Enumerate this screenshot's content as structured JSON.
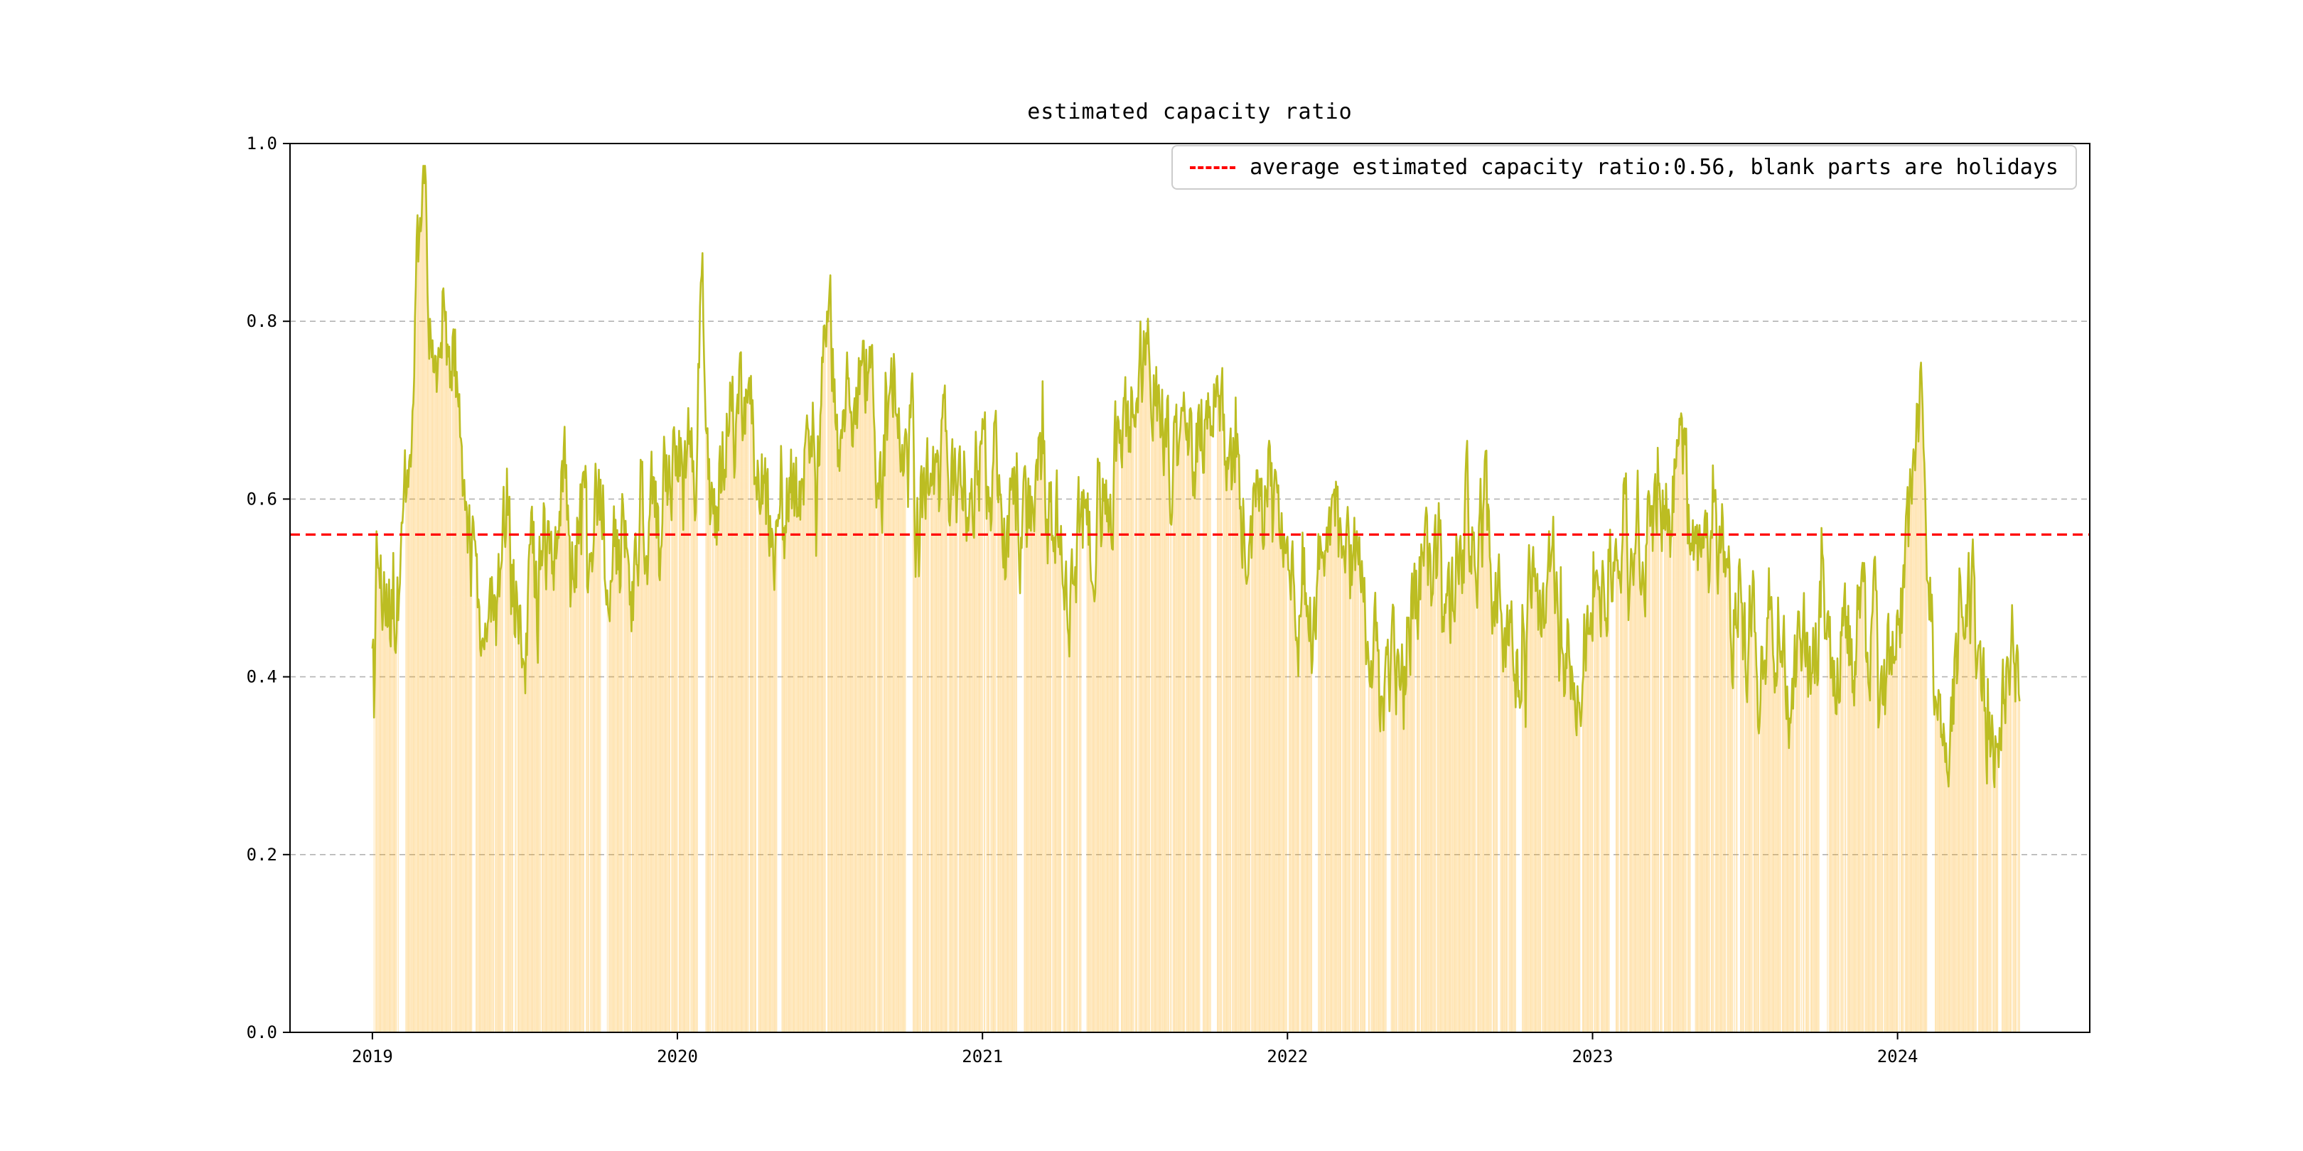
{
  "window": {
    "background": "#ffffff"
  },
  "chart_data": {
    "type": "line",
    "title": "estimated capacity ratio",
    "legend": {
      "label": "average estimated capacity ratio:0.56, blank parts are holidays",
      "position": "upper right",
      "style": "red-dashed-line-sample"
    },
    "average_value": 0.56,
    "x_tick_labels": [
      "2019",
      "2020",
      "2021",
      "2022",
      "2023",
      "2024"
    ],
    "x_tick_years": [
      2019,
      2020,
      2021,
      2022,
      2023,
      2024
    ],
    "y_tick_labels": [
      "0.0",
      "0.2",
      "0.4",
      "0.6",
      "0.8",
      "1.0"
    ],
    "y_ticks": [
      0,
      0.2,
      0.4,
      0.6,
      0.8,
      1.0
    ],
    "xlim": [
      2018.73,
      2024.63
    ],
    "ylim": [
      0,
      1
    ],
    "grid": "horizontal-dashed",
    "colors": {
      "line": "#bcbd22",
      "bars": "#ffa500",
      "bar_opacity": 0.35,
      "average": "#ff0000",
      "grid": "#b3b3b3",
      "text": "#000000"
    },
    "random_holiday_rate": 0.045,
    "holidays": [
      [
        2019.0,
        2019.004
      ],
      [
        2019.09,
        2019.109
      ],
      [
        2019.258,
        2019.262
      ],
      [
        2019.328,
        2019.337
      ],
      [
        2019.43,
        2019.434
      ],
      [
        2019.695,
        2019.699
      ],
      [
        2019.748,
        2019.768
      ],
      [
        2020.0,
        2020.004
      ],
      [
        2020.068,
        2020.092
      ],
      [
        2020.258,
        2020.265
      ],
      [
        2020.328,
        2020.342
      ],
      [
        2020.485,
        2020.491
      ],
      [
        2020.748,
        2020.771
      ],
      [
        2021.0,
        2021.004
      ],
      [
        2021.115,
        2021.135
      ],
      [
        2021.258,
        2021.265
      ],
      [
        2021.326,
        2021.34
      ],
      [
        2021.447,
        2021.453
      ],
      [
        2021.715,
        2021.722
      ],
      [
        2021.748,
        2021.768
      ],
      [
        2022.0,
        2022.004
      ],
      [
        2022.082,
        2022.101
      ],
      [
        2022.258,
        2022.265
      ],
      [
        2022.326,
        2022.338
      ],
      [
        2022.417,
        2022.423
      ],
      [
        2022.69,
        2022.697
      ],
      [
        2022.748,
        2022.768
      ],
      [
        2023.0,
        2023.004
      ],
      [
        2023.055,
        2023.075
      ],
      [
        2023.258,
        2023.262
      ],
      [
        2023.323,
        2023.335
      ],
      [
        2023.474,
        2023.483
      ],
      [
        2023.745,
        2023.768
      ],
      [
        2024.0,
        2024.004
      ],
      [
        2024.101,
        2024.121
      ],
      [
        2024.258,
        2024.265
      ],
      [
        2024.329,
        2024.341
      ],
      [
        2024.434,
        2024.443
      ]
    ],
    "series": {
      "name": "estimated capacity ratio",
      "start": 2019.0,
      "end": 2024.4,
      "points_per_year": 365,
      "noise_amplitude": 0.04,
      "anchors": [
        [
          2019.0,
          0.41
        ],
        [
          2019.02,
          0.56
        ],
        [
          2019.04,
          0.5
        ],
        [
          2019.06,
          0.47
        ],
        [
          2019.08,
          0.47
        ],
        [
          2019.1,
          0.55
        ],
        [
          2019.13,
          0.72
        ],
        [
          2019.16,
          0.93
        ],
        [
          2019.17,
          0.96
        ],
        [
          2019.19,
          0.82
        ],
        [
          2019.21,
          0.78
        ],
        [
          2019.23,
          0.84
        ],
        [
          2019.25,
          0.74
        ],
        [
          2019.27,
          0.76
        ],
        [
          2019.29,
          0.68
        ],
        [
          2019.31,
          0.55
        ],
        [
          2019.33,
          0.5
        ],
        [
          2019.36,
          0.47
        ],
        [
          2019.38,
          0.52
        ],
        [
          2019.4,
          0.45
        ],
        [
          2019.42,
          0.48
        ],
        [
          2019.44,
          0.62
        ],
        [
          2019.46,
          0.5
        ],
        [
          2019.48,
          0.46
        ],
        [
          2019.5,
          0.44
        ],
        [
          2019.52,
          0.55
        ],
        [
          2019.54,
          0.48
        ],
        [
          2019.56,
          0.6
        ],
        [
          2019.58,
          0.52
        ],
        [
          2019.6,
          0.56
        ],
        [
          2019.63,
          0.61
        ],
        [
          2019.65,
          0.5
        ],
        [
          2019.67,
          0.55
        ],
        [
          2019.69,
          0.6
        ],
        [
          2019.71,
          0.53
        ],
        [
          2019.73,
          0.62
        ],
        [
          2019.75,
          0.57
        ],
        [
          2019.77,
          0.5
        ],
        [
          2019.79,
          0.55
        ],
        [
          2019.81,
          0.52
        ],
        [
          2019.83,
          0.56
        ],
        [
          2019.85,
          0.5
        ],
        [
          2019.88,
          0.6
        ],
        [
          2019.9,
          0.54
        ],
        [
          2019.92,
          0.62
        ],
        [
          2019.94,
          0.58
        ],
        [
          2019.96,
          0.64
        ],
        [
          2019.98,
          0.6
        ],
        [
          2020.0,
          0.66
        ],
        [
          2020.02,
          0.6
        ],
        [
          2020.04,
          0.7
        ],
        [
          2020.06,
          0.63
        ],
        [
          2020.08,
          0.87
        ],
        [
          2020.1,
          0.62
        ],
        [
          2020.12,
          0.57
        ],
        [
          2020.15,
          0.65
        ],
        [
          2020.17,
          0.7
        ],
        [
          2020.19,
          0.66
        ],
        [
          2020.21,
          0.72
        ],
        [
          2020.23,
          0.68
        ],
        [
          2020.25,
          0.71
        ],
        [
          2020.27,
          0.65
        ],
        [
          2020.29,
          0.6
        ],
        [
          2020.31,
          0.55
        ],
        [
          2020.33,
          0.52
        ],
        [
          2020.35,
          0.58
        ],
        [
          2020.38,
          0.62
        ],
        [
          2020.4,
          0.6
        ],
        [
          2020.42,
          0.66
        ],
        [
          2020.44,
          0.71
        ],
        [
          2020.46,
          0.68
        ],
        [
          2020.48,
          0.73
        ],
        [
          2020.5,
          0.84
        ],
        [
          2020.52,
          0.66
        ],
        [
          2020.54,
          0.63
        ],
        [
          2020.56,
          0.7
        ],
        [
          2020.58,
          0.66
        ],
        [
          2020.6,
          0.72
        ],
        [
          2020.63,
          0.76
        ],
        [
          2020.65,
          0.67
        ],
        [
          2020.67,
          0.63
        ],
        [
          2020.69,
          0.7
        ],
        [
          2020.71,
          0.74
        ],
        [
          2020.73,
          0.66
        ],
        [
          2020.75,
          0.6
        ],
        [
          2020.77,
          0.66
        ],
        [
          2020.79,
          0.56
        ],
        [
          2020.81,
          0.6
        ],
        [
          2020.83,
          0.64
        ],
        [
          2020.85,
          0.58
        ],
        [
          2020.88,
          0.66
        ],
        [
          2020.9,
          0.61
        ],
        [
          2020.92,
          0.57
        ],
        [
          2020.94,
          0.63
        ],
        [
          2020.96,
          0.58
        ],
        [
          2020.98,
          0.62
        ],
        [
          2021.0,
          0.65
        ],
        [
          2021.02,
          0.6
        ],
        [
          2021.04,
          0.66
        ],
        [
          2021.06,
          0.57
        ],
        [
          2021.08,
          0.53
        ],
        [
          2021.1,
          0.58
        ],
        [
          2021.13,
          0.55
        ],
        [
          2021.15,
          0.62
        ],
        [
          2021.17,
          0.58
        ],
        [
          2021.19,
          0.64
        ],
        [
          2021.21,
          0.6
        ],
        [
          2021.23,
          0.55
        ],
        [
          2021.25,
          0.58
        ],
        [
          2021.27,
          0.52
        ],
        [
          2021.29,
          0.49
        ],
        [
          2021.31,
          0.55
        ],
        [
          2021.33,
          0.58
        ],
        [
          2021.35,
          0.54
        ],
        [
          2021.38,
          0.6
        ],
        [
          2021.4,
          0.63
        ],
        [
          2021.42,
          0.6
        ],
        [
          2021.44,
          0.66
        ],
        [
          2021.46,
          0.7
        ],
        [
          2021.48,
          0.67
        ],
        [
          2021.5,
          0.73
        ],
        [
          2021.52,
          0.76
        ],
        [
          2021.54,
          0.73
        ],
        [
          2021.56,
          0.76
        ],
        [
          2021.58,
          0.71
        ],
        [
          2021.6,
          0.67
        ],
        [
          2021.63,
          0.64
        ],
        [
          2021.65,
          0.68
        ],
        [
          2021.67,
          0.63
        ],
        [
          2021.69,
          0.66
        ],
        [
          2021.71,
          0.7
        ],
        [
          2021.73,
          0.66
        ],
        [
          2021.75,
          0.68
        ],
        [
          2021.77,
          0.72
        ],
        [
          2021.79,
          0.66
        ],
        [
          2021.81,
          0.63
        ],
        [
          2021.83,
          0.66
        ],
        [
          2021.85,
          0.6
        ],
        [
          2021.88,
          0.56
        ],
        [
          2021.9,
          0.62
        ],
        [
          2021.92,
          0.58
        ],
        [
          2021.94,
          0.63
        ],
        [
          2021.96,
          0.58
        ],
        [
          2021.98,
          0.55
        ],
        [
          2022.0,
          0.52
        ],
        [
          2022.02,
          0.48
        ],
        [
          2022.04,
          0.46
        ],
        [
          2022.06,
          0.5
        ],
        [
          2022.08,
          0.47
        ],
        [
          2022.1,
          0.52
        ],
        [
          2022.13,
          0.56
        ],
        [
          2022.15,
          0.6
        ],
        [
          2022.17,
          0.55
        ],
        [
          2022.19,
          0.58
        ],
        [
          2022.21,
          0.52
        ],
        [
          2022.23,
          0.56
        ],
        [
          2022.25,
          0.5
        ],
        [
          2022.27,
          0.44
        ],
        [
          2022.29,
          0.42
        ],
        [
          2022.31,
          0.38
        ],
        [
          2022.33,
          0.35
        ],
        [
          2022.35,
          0.4
        ],
        [
          2022.38,
          0.44
        ],
        [
          2022.4,
          0.47
        ],
        [
          2022.42,
          0.5
        ],
        [
          2022.44,
          0.53
        ],
        [
          2022.46,
          0.49
        ],
        [
          2022.48,
          0.52
        ],
        [
          2022.5,
          0.55
        ],
        [
          2022.52,
          0.51
        ],
        [
          2022.54,
          0.48
        ],
        [
          2022.56,
          0.53
        ],
        [
          2022.58,
          0.56
        ],
        [
          2022.6,
          0.6
        ],
        [
          2022.63,
          0.55
        ],
        [
          2022.65,
          0.58
        ],
        [
          2022.67,
          0.52
        ],
        [
          2022.69,
          0.48
        ],
        [
          2022.71,
          0.45
        ],
        [
          2022.73,
          0.42
        ],
        [
          2022.75,
          0.4
        ],
        [
          2022.77,
          0.44
        ],
        [
          2022.79,
          0.47
        ],
        [
          2022.81,
          0.5
        ],
        [
          2022.83,
          0.47
        ],
        [
          2022.85,
          0.51
        ],
        [
          2022.88,
          0.46
        ],
        [
          2022.9,
          0.42
        ],
        [
          2022.92,
          0.45
        ],
        [
          2022.94,
          0.4
        ],
        [
          2022.96,
          0.42
        ],
        [
          2022.98,
          0.46
        ],
        [
          2023.0,
          0.49
        ],
        [
          2023.02,
          0.53
        ],
        [
          2023.04,
          0.5
        ],
        [
          2023.06,
          0.55
        ],
        [
          2023.08,
          0.52
        ],
        [
          2023.1,
          0.57
        ],
        [
          2023.13,
          0.54
        ],
        [
          2023.15,
          0.58
        ],
        [
          2023.17,
          0.55
        ],
        [
          2023.19,
          0.59
        ],
        [
          2023.21,
          0.56
        ],
        [
          2023.23,
          0.6
        ],
        [
          2023.25,
          0.57
        ],
        [
          2023.27,
          0.62
        ],
        [
          2023.29,
          0.69
        ],
        [
          2023.31,
          0.6
        ],
        [
          2023.33,
          0.52
        ],
        [
          2023.35,
          0.56
        ],
        [
          2023.38,
          0.5
        ],
        [
          2023.4,
          0.54
        ],
        [
          2023.42,
          0.57
        ],
        [
          2023.44,
          0.5
        ],
        [
          2023.46,
          0.46
        ],
        [
          2023.48,
          0.5
        ],
        [
          2023.5,
          0.44
        ],
        [
          2023.52,
          0.47
        ],
        [
          2023.54,
          0.41
        ],
        [
          2023.56,
          0.45
        ],
        [
          2023.58,
          0.48
        ],
        [
          2023.6,
          0.43
        ],
        [
          2023.63,
          0.4
        ],
        [
          2023.65,
          0.37
        ],
        [
          2023.67,
          0.41
        ],
        [
          2023.69,
          0.44
        ],
        [
          2023.71,
          0.4
        ],
        [
          2023.73,
          0.43
        ],
        [
          2023.75,
          0.45
        ],
        [
          2023.77,
          0.41
        ],
        [
          2023.79,
          0.38
        ],
        [
          2023.81,
          0.42
        ],
        [
          2023.83,
          0.45
        ],
        [
          2023.85,
          0.42
        ],
        [
          2023.88,
          0.46
        ],
        [
          2023.9,
          0.43
        ],
        [
          2023.92,
          0.46
        ],
        [
          2023.94,
          0.42
        ],
        [
          2023.96,
          0.39
        ],
        [
          2023.98,
          0.42
        ],
        [
          2024.0,
          0.44
        ],
        [
          2024.02,
          0.48
        ],
        [
          2024.04,
          0.55
        ],
        [
          2024.06,
          0.65
        ],
        [
          2024.08,
          0.76
        ],
        [
          2024.1,
          0.52
        ],
        [
          2024.12,
          0.4
        ],
        [
          2024.15,
          0.36
        ],
        [
          2024.17,
          0.34
        ],
        [
          2024.19,
          0.4
        ],
        [
          2024.21,
          0.45
        ],
        [
          2024.23,
          0.5
        ],
        [
          2024.25,
          0.47
        ],
        [
          2024.27,
          0.4
        ],
        [
          2024.29,
          0.36
        ],
        [
          2024.31,
          0.32
        ],
        [
          2024.33,
          0.36
        ],
        [
          2024.35,
          0.4
        ],
        [
          2024.38,
          0.42
        ],
        [
          2024.4,
          0.4
        ]
      ]
    }
  }
}
